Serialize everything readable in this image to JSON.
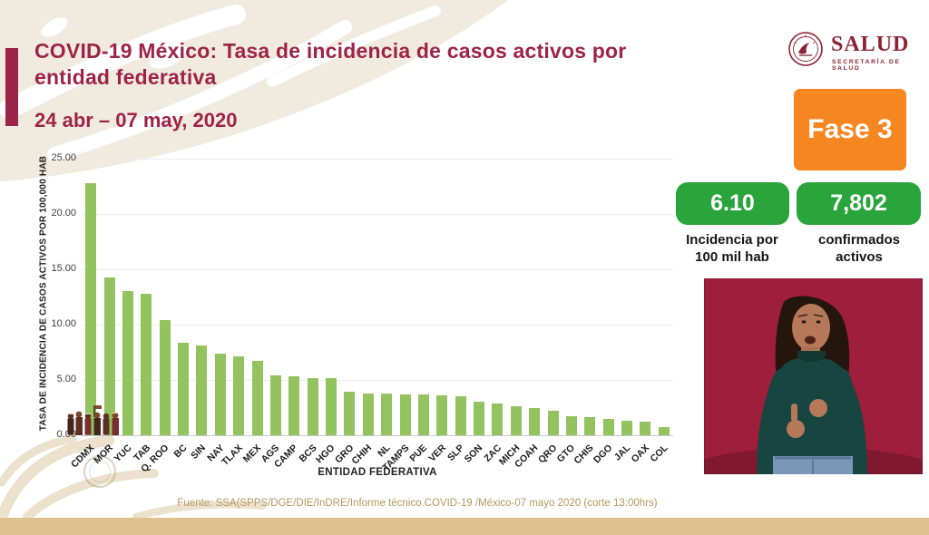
{
  "header": {
    "title": "COVID-19 México: Tasa de incidencia de casos activos por entidad federativa",
    "date_range": "24 abr – 07 may, 2020"
  },
  "logo": {
    "name": "SALUD",
    "subtitle": "SECRETARÍA DE SALUD"
  },
  "phase_badge": {
    "label": "Fase 3"
  },
  "stats": [
    {
      "value": "6.10",
      "label_line1": "Incidencia por",
      "label_line2": "100 mil hab"
    },
    {
      "value": "7,802",
      "label_line1": "confirmados",
      "label_line2": "activos"
    }
  ],
  "chart_data": {
    "type": "bar",
    "title": "",
    "xlabel": "ENTIDAD FEDERATIVA",
    "ylabel": "TASA DE INCIDENCIA DE CASOS ACTIVOS  POR 100,000 HAB",
    "ylim": [
      0,
      25
    ],
    "grid": true,
    "legend": "none",
    "bar_color": "#92c35e",
    "yticks": [
      0,
      5,
      10,
      15,
      20,
      25
    ],
    "ytick_labels": [
      "0.00",
      "5.00",
      "10.00",
      "15.00",
      "20.00",
      "25.00"
    ],
    "categories": [
      "CDMX",
      "MOR",
      "YUC",
      "TAB",
      "Q. ROO",
      "BC",
      "SIN",
      "NAY",
      "TLAX",
      "MEX",
      "AGS",
      "CAMP",
      "BCS",
      "HGO",
      "GRO",
      "CHIH",
      "NL",
      "TAMPS",
      "PUE",
      "VER",
      "SLP",
      "SON",
      "ZAC",
      "MICH",
      "COAH",
      "QRO",
      "GTO",
      "CHIS",
      "DGO",
      "JAL",
      "OAX",
      "COL"
    ],
    "values": [
      22.8,
      14.3,
      13.0,
      12.8,
      10.4,
      8.4,
      8.1,
      7.4,
      7.1,
      6.7,
      5.4,
      5.3,
      5.2,
      5.2,
      3.9,
      3.8,
      3.8,
      3.7,
      3.7,
      3.6,
      3.5,
      3.0,
      2.85,
      2.6,
      2.5,
      2.2,
      1.75,
      1.6,
      1.5,
      1.35,
      1.25,
      0.7
    ]
  },
  "footer": {
    "source": "Fuente: SSA(SPPS/DGE/DIE/InDRE/Informe técnico.COVID-19 /México-07 mayo 2020 (corte 13:00hrs)"
  },
  "colors": {
    "accent_maroon": "#9d2449",
    "bar_green": "#92c35e",
    "badge_green": "#2aa53c",
    "phase_orange": "#f6861f",
    "band_tan": "#dec18f",
    "source_gold": "#b5975f",
    "interpreter_bg": "#9e1e3c"
  }
}
